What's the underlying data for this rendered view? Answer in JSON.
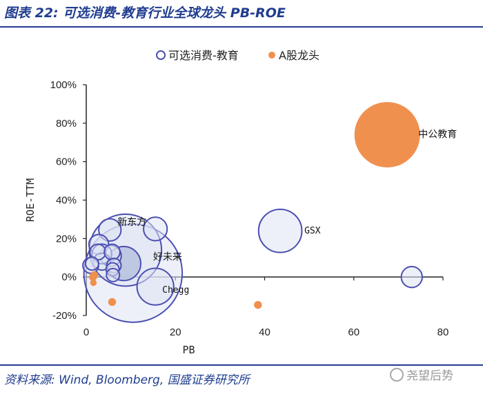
{
  "figure": {
    "title": "图表 22:  可选消费-教育行业全球龙头 PB-ROE",
    "source": "资料来源: Wind, Bloomberg, 国盛证券研究所",
    "watermark": "尧望后势"
  },
  "colors": {
    "brand": "#1f3c8f",
    "series_edu_stroke": "#4b4fb0",
    "series_edu_fill": "#dfe4f3",
    "series_a_fill": "#f0904f"
  },
  "chart_data": {
    "type": "scatter",
    "xlabel": "PB",
    "ylabel": "ROE-TTM",
    "xlim": [
      0,
      80
    ],
    "ylim": [
      -20,
      100
    ],
    "x_ticks": [
      0,
      20,
      40,
      60,
      80
    ],
    "y_ticks": [
      -20,
      0,
      20,
      40,
      60,
      80,
      100
    ],
    "y_tick_labels": [
      "-20%",
      "0%",
      "20%",
      "40%",
      "60%",
      "80%",
      "100%"
    ],
    "legend_position": "top",
    "series": [
      {
        "name": "可选消费-教育",
        "style": "hollow",
        "points": [
          {
            "x": 1.0,
            "y": 6,
            "size": 1.2
          },
          {
            "x": 1.3,
            "y": 7,
            "size": 1.0
          },
          {
            "x": 2.8,
            "y": 17,
            "size": 1.5
          },
          {
            "x": 2.6,
            "y": 13,
            "size": 1.2
          },
          {
            "x": 3.5,
            "y": 12,
            "size": 1.5
          },
          {
            "x": 3.5,
            "y": 8,
            "size": 1.3
          },
          {
            "x": 5.3,
            "y": 24.5,
            "size": 1.7
          },
          {
            "x": 5.5,
            "y": 11,
            "size": 1.6
          },
          {
            "x": 5.8,
            "y": 13,
            "size": 1.2
          },
          {
            "x": 5.9,
            "y": 4,
            "size": 1.0
          },
          {
            "x": 6.2,
            "y": 6,
            "size": 1.1
          },
          {
            "x": 6.0,
            "y": 1,
            "size": 1.0
          },
          {
            "x": 8.4,
            "y": 7,
            "size": 2.6,
            "fill": "#b8c2df"
          },
          {
            "x": 8.8,
            "y": 14,
            "size": 5.5
          },
          {
            "x": 10.5,
            "y": 2,
            "size": 7.5,
            "label": "好未来"
          },
          {
            "x": 15.5,
            "y": 25,
            "size": 1.8
          },
          {
            "x": 15.5,
            "y": -5,
            "size": 2.8,
            "label": "Chegg"
          },
          {
            "x": 43.5,
            "y": 24,
            "size": 3.3,
            "label": "GSX"
          },
          {
            "x": 73,
            "y": 0,
            "size": 1.6
          }
        ]
      },
      {
        "name": "A股龙头",
        "style": "filled",
        "points": [
          {
            "x": 1.5,
            "y": 0,
            "size": 0.6
          },
          {
            "x": 1.8,
            "y": 1,
            "size": 0.6
          },
          {
            "x": 1.6,
            "y": -3,
            "size": 0.5
          },
          {
            "x": 5.8,
            "y": -13,
            "size": 0.6
          },
          {
            "x": 38.5,
            "y": -14.5,
            "size": 0.6
          },
          {
            "x": 67.5,
            "y": 74,
            "size": 5.0,
            "label": "中公教育"
          }
        ]
      }
    ],
    "annotations": [
      {
        "text": "新东方",
        "x": 7,
        "y": 27
      }
    ]
  }
}
